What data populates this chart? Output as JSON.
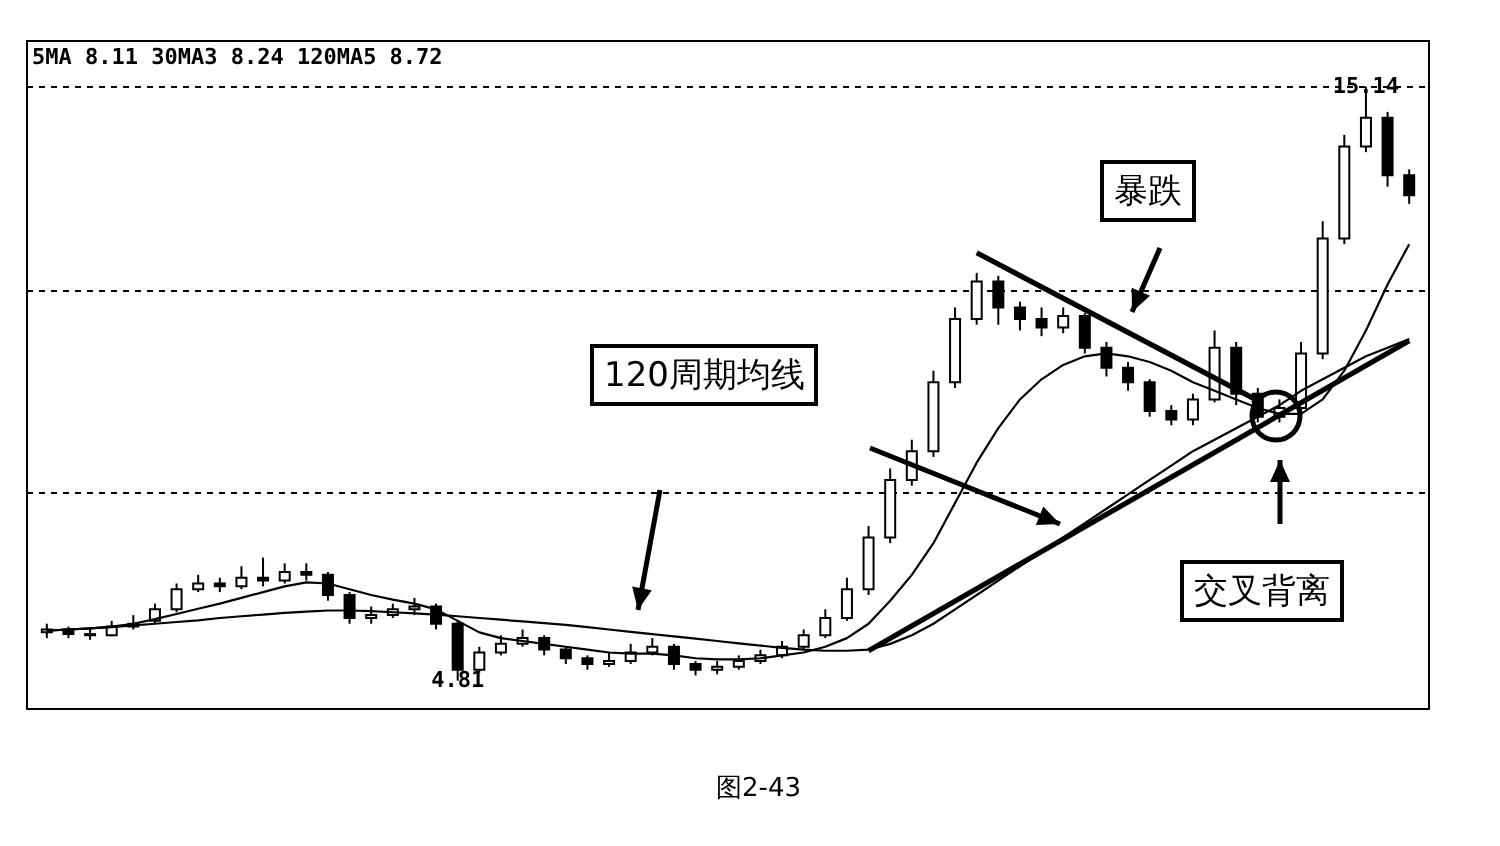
{
  "chart_data": {
    "type": "candlestick",
    "title": "5MA 8.11 30MA3 8.24 120MA5 8.72",
    "categories": [
      null,
      null,
      null,
      null,
      null,
      null,
      null,
      null,
      null,
      null,
      null,
      null,
      null,
      null,
      null,
      null,
      null,
      null,
      null,
      null,
      null,
      null,
      null,
      null,
      null,
      null,
      null,
      null,
      null,
      null,
      null,
      null,
      null,
      null,
      null,
      null,
      null,
      null,
      null,
      null,
      null,
      null,
      null,
      null,
      null,
      null,
      null,
      null,
      null,
      null,
      null,
      null,
      null,
      null,
      null,
      null,
      null,
      null,
      null,
      null,
      null,
      null,
      null,
      null
    ],
    "ohlc": [
      [
        5.65,
        5.8,
        5.55,
        5.7
      ],
      [
        5.7,
        5.75,
        5.55,
        5.62
      ],
      [
        5.62,
        5.72,
        5.52,
        5.6
      ],
      [
        5.6,
        5.85,
        5.58,
        5.75
      ],
      [
        5.75,
        5.95,
        5.7,
        5.8
      ],
      [
        5.85,
        6.15,
        5.8,
        6.05
      ],
      [
        6.05,
        6.5,
        6.0,
        6.4
      ],
      [
        6.4,
        6.65,
        6.35,
        6.5
      ],
      [
        6.5,
        6.6,
        6.35,
        6.45
      ],
      [
        6.45,
        6.8,
        6.4,
        6.6
      ],
      [
        6.6,
        6.95,
        6.45,
        6.55
      ],
      [
        6.55,
        6.85,
        6.5,
        6.7
      ],
      [
        6.7,
        6.85,
        6.55,
        6.65
      ],
      [
        6.65,
        6.7,
        6.2,
        6.3
      ],
      [
        6.3,
        6.35,
        5.8,
        5.9
      ],
      [
        5.9,
        6.1,
        5.8,
        5.95
      ],
      [
        5.95,
        6.15,
        5.9,
        6.05
      ],
      [
        6.05,
        6.25,
        5.95,
        6.1
      ],
      [
        6.1,
        6.15,
        5.7,
        5.8
      ],
      [
        5.8,
        5.85,
        4.81,
        5.0
      ],
      [
        5.0,
        5.4,
        4.95,
        5.3
      ],
      [
        5.3,
        5.6,
        5.25,
        5.45
      ],
      [
        5.45,
        5.7,
        5.4,
        5.55
      ],
      [
        5.55,
        5.6,
        5.25,
        5.35
      ],
      [
        5.35,
        5.4,
        5.1,
        5.2
      ],
      [
        5.2,
        5.25,
        5.0,
        5.1
      ],
      [
        5.1,
        5.3,
        5.05,
        5.15
      ],
      [
        5.15,
        5.45,
        5.1,
        5.3
      ],
      [
        5.3,
        5.55,
        5.25,
        5.4
      ],
      [
        5.4,
        5.45,
        5.0,
        5.1
      ],
      [
        5.1,
        5.15,
        4.9,
        5.0
      ],
      [
        5.0,
        5.15,
        4.92,
        5.05
      ],
      [
        5.05,
        5.25,
        5.0,
        5.15
      ],
      [
        5.15,
        5.35,
        5.1,
        5.25
      ],
      [
        5.25,
        5.5,
        5.2,
        5.4
      ],
      [
        5.4,
        5.7,
        5.35,
        5.6
      ],
      [
        5.6,
        6.05,
        5.55,
        5.9
      ],
      [
        5.9,
        6.6,
        5.85,
        6.4
      ],
      [
        6.4,
        7.5,
        6.3,
        7.3
      ],
      [
        7.3,
        8.5,
        7.2,
        8.3
      ],
      [
        8.3,
        9.0,
        8.2,
        8.8
      ],
      [
        8.8,
        10.2,
        8.7,
        10.0
      ],
      [
        10.0,
        11.3,
        9.9,
        11.1
      ],
      [
        11.1,
        11.9,
        11.0,
        11.75
      ],
      [
        11.75,
        11.85,
        11.0,
        11.3
      ],
      [
        11.3,
        11.4,
        10.9,
        11.1
      ],
      [
        11.1,
        11.3,
        10.8,
        10.95
      ],
      [
        10.95,
        11.3,
        10.85,
        11.15
      ],
      [
        11.15,
        11.2,
        10.5,
        10.6
      ],
      [
        10.6,
        10.7,
        10.1,
        10.25
      ],
      [
        10.25,
        10.35,
        9.85,
        10.0
      ],
      [
        10.0,
        10.05,
        9.4,
        9.5
      ],
      [
        9.5,
        9.6,
        9.25,
        9.35
      ],
      [
        9.35,
        9.8,
        9.25,
        9.7
      ],
      [
        9.7,
        10.9,
        9.65,
        10.6
      ],
      [
        10.6,
        10.7,
        9.6,
        9.8
      ],
      [
        9.8,
        9.9,
        9.3,
        9.4
      ],
      [
        9.4,
        9.7,
        9.3,
        9.55
      ],
      [
        9.55,
        10.7,
        9.5,
        10.5
      ],
      [
        10.5,
        12.8,
        10.4,
        12.5
      ],
      [
        12.5,
        14.3,
        12.4,
        14.1
      ],
      [
        14.1,
        15.14,
        14.0,
        14.6
      ],
      [
        14.6,
        14.7,
        13.4,
        13.6
      ],
      [
        13.6,
        13.7,
        13.1,
        13.25
      ]
    ],
    "series": [
      {
        "type": "line",
        "color": "#000000",
        "values": [
          5.68,
          5.7,
          5.72,
          5.75,
          5.8,
          5.88,
          5.97,
          6.06,
          6.15,
          6.25,
          6.35,
          6.45,
          6.52,
          6.5,
          6.4,
          6.3,
          6.22,
          6.15,
          6.05,
          5.85,
          5.65,
          5.55,
          5.5,
          5.45,
          5.4,
          5.35,
          5.3,
          5.28,
          5.28,
          5.25,
          5.2,
          5.18,
          5.18,
          5.2,
          5.25,
          5.3,
          5.4,
          5.55,
          5.8,
          6.2,
          6.65,
          7.2,
          7.9,
          8.6,
          9.2,
          9.7,
          10.05,
          10.3,
          10.45,
          10.5,
          10.45,
          10.35,
          10.2,
          10.0,
          9.85,
          9.7,
          9.55,
          9.45,
          9.45,
          9.7,
          10.2,
          10.9,
          11.7,
          12.4
        ]
      },
      {
        "type": "line",
        "color": "#000000",
        "values": [
          5.68,
          5.7,
          5.72,
          5.74,
          5.77,
          5.8,
          5.83,
          5.86,
          5.9,
          5.93,
          5.96,
          5.99,
          6.01,
          6.03,
          6.03,
          6.02,
          6.0,
          5.98,
          5.96,
          5.93,
          5.9,
          5.87,
          5.84,
          5.81,
          5.78,
          5.74,
          5.7,
          5.66,
          5.62,
          5.58,
          5.54,
          5.5,
          5.46,
          5.42,
          5.38,
          5.35,
          5.33,
          5.33,
          5.35,
          5.45,
          5.6,
          5.8,
          6.05,
          6.3,
          6.55,
          6.8,
          7.05,
          7.3,
          7.55,
          7.8,
          8.05,
          8.3,
          8.55,
          8.8,
          9.0,
          9.2,
          9.4,
          9.6,
          9.85,
          10.05,
          10.25,
          10.45,
          10.6,
          10.75
        ]
      },
      {
        "type": "line",
        "color": "#000000",
        "values": [
          null,
          null,
          null,
          null,
          null,
          null,
          null,
          null,
          null,
          null,
          null,
          null,
          null,
          null,
          null,
          null,
          null,
          null,
          null,
          null,
          null,
          null,
          null,
          null,
          null,
          null,
          null,
          null,
          null,
          null,
          null,
          null,
          null,
          null,
          null,
          null,
          null,
          null,
          null,
          null,
          null,
          null,
          null,
          12.25,
          null,
          null,
          null,
          null,
          null,
          null,
          null,
          null,
          null,
          null,
          null,
          null,
          9.68,
          null,
          null,
          null,
          null,
          null,
          null,
          null
        ]
      },
      {
        "type": "line",
        "color": "#000000",
        "values": [
          null,
          null,
          null,
          null,
          null,
          null,
          null,
          null,
          null,
          null,
          null,
          null,
          null,
          null,
          null,
          null,
          null,
          null,
          null,
          null,
          null,
          null,
          null,
          null,
          null,
          null,
          null,
          null,
          null,
          null,
          null,
          null,
          null,
          null,
          null,
          null,
          null,
          null,
          5.33,
          null,
          null,
          null,
          null,
          null,
          null,
          null,
          null,
          null,
          null,
          null,
          null,
          null,
          null,
          null,
          null,
          null,
          null,
          null,
          null,
          null,
          null,
          null,
          null,
          10.72
        ]
      }
    ],
    "ylim": [
      4.3,
      15.95
    ],
    "yticks": [
      {
        "value": 8.08,
        "label": null
      },
      {
        "value": 11.59,
        "label": null
      },
      {
        "value": 15.14,
        "label": null
      }
    ],
    "grid": "y",
    "annotations": [
      "120周期均线",
      "暴跌",
      "交叉背离",
      "图2-43",
      {
        "text": "15.14",
        "y": 15.14
      },
      {
        "text": "4.81",
        "y": 4.81
      }
    ]
  }
}
